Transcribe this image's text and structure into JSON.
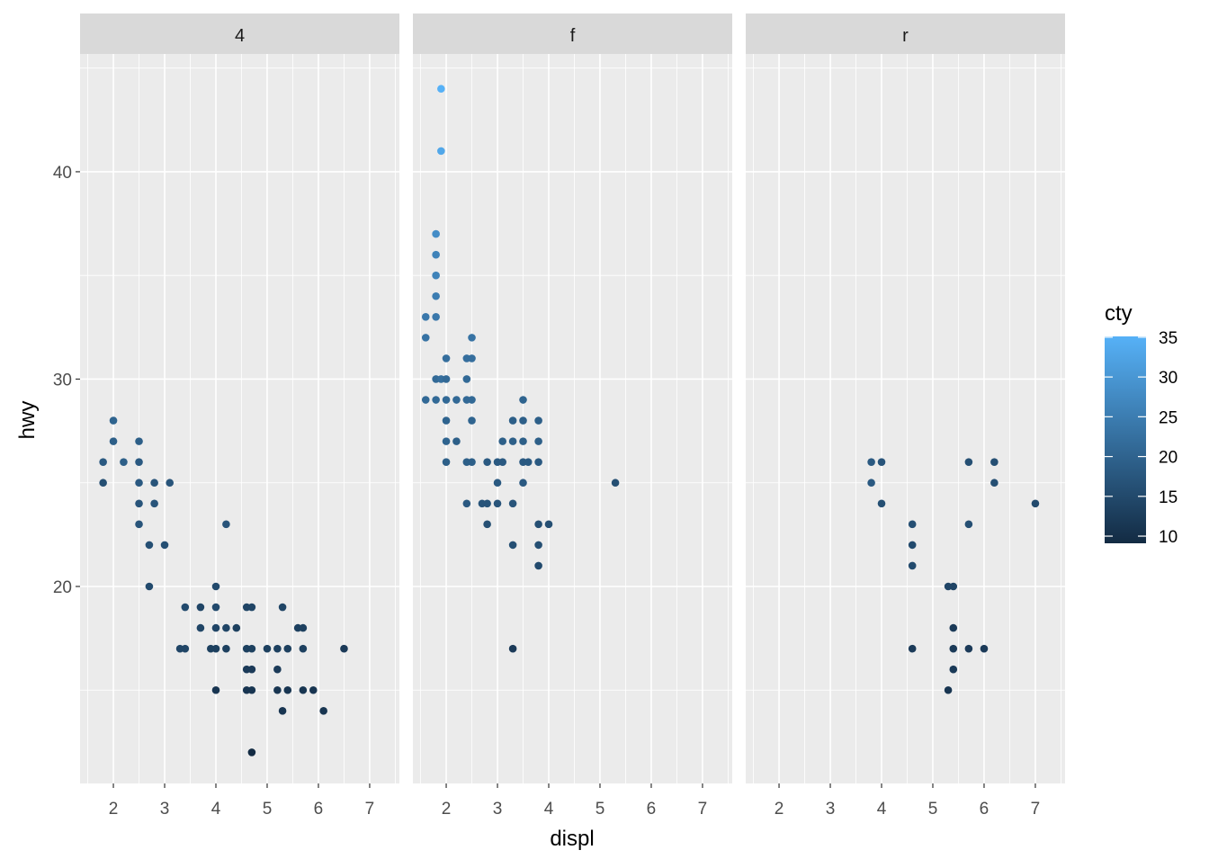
{
  "chart_data": {
    "type": "scatter",
    "facet_by": "drv",
    "xlabel": "displ",
    "ylabel": "hwy",
    "xlim": [
      1.35,
      7.58
    ],
    "ylim": [
      10.5,
      45.68
    ],
    "x_ticks": [
      "2",
      "3",
      "4",
      "5",
      "6",
      "7"
    ],
    "y_ticks": [
      "20",
      "30",
      "40"
    ],
    "grid": true,
    "legend": {
      "title": "cty",
      "placement": "right",
      "type": "colorbar",
      "ticks": [
        "10",
        "15",
        "20",
        "25",
        "30",
        "35"
      ],
      "range": [
        9,
        35
      ],
      "low_color": "#132B43",
      "high_color": "#56B1F7"
    },
    "facets": [
      {
        "label": "4",
        "points": [
          [
            1.8,
            26,
            18
          ],
          [
            1.8,
            25,
            16
          ],
          [
            2.0,
            28,
            20
          ],
          [
            2.0,
            27,
            19
          ],
          [
            2.2,
            26,
            19
          ],
          [
            2.5,
            27,
            19
          ],
          [
            2.5,
            26,
            18
          ],
          [
            2.5,
            25,
            18
          ],
          [
            2.5,
            24,
            17
          ],
          [
            2.5,
            23,
            17
          ],
          [
            2.7,
            22,
            16
          ],
          [
            2.7,
            20,
            15
          ],
          [
            2.8,
            25,
            17
          ],
          [
            2.8,
            24,
            17
          ],
          [
            3.0,
            22,
            16
          ],
          [
            3.1,
            25,
            17
          ],
          [
            3.3,
            17,
            14
          ],
          [
            3.4,
            19,
            15
          ],
          [
            3.4,
            17,
            14
          ],
          [
            3.7,
            19,
            14
          ],
          [
            3.7,
            18,
            14
          ],
          [
            3.9,
            17,
            13
          ],
          [
            4.0,
            20,
            15
          ],
          [
            4.0,
            19,
            15
          ],
          [
            4.0,
            18,
            14
          ],
          [
            4.0,
            17,
            13
          ],
          [
            4.0,
            15,
            11
          ],
          [
            4.2,
            18,
            14
          ],
          [
            4.2,
            17,
            13
          ],
          [
            4.2,
            23,
            17
          ],
          [
            4.4,
            18,
            13
          ],
          [
            4.6,
            19,
            14
          ],
          [
            4.6,
            17,
            13
          ],
          [
            4.6,
            16,
            12
          ],
          [
            4.6,
            15,
            11
          ],
          [
            4.7,
            19,
            14
          ],
          [
            4.7,
            17,
            13
          ],
          [
            4.7,
            16,
            12
          ],
          [
            4.7,
            15,
            11
          ],
          [
            4.7,
            12,
            9
          ],
          [
            5.0,
            17,
            13
          ],
          [
            5.2,
            17,
            13
          ],
          [
            5.2,
            16,
            12
          ],
          [
            5.2,
            15,
            11
          ],
          [
            5.3,
            19,
            14
          ],
          [
            5.3,
            14,
            11
          ],
          [
            5.4,
            17,
            13
          ],
          [
            5.4,
            15,
            11
          ],
          [
            5.6,
            18,
            13
          ],
          [
            5.7,
            18,
            13
          ],
          [
            5.7,
            17,
            13
          ],
          [
            5.7,
            15,
            11
          ],
          [
            5.9,
            15,
            11
          ],
          [
            6.1,
            14,
            11
          ],
          [
            6.5,
            17,
            12
          ]
        ]
      },
      {
        "label": "f",
        "points": [
          [
            1.6,
            33,
            24
          ],
          [
            1.6,
            32,
            23
          ],
          [
            1.6,
            29,
            21
          ],
          [
            1.8,
            37,
            28
          ],
          [
            1.8,
            36,
            26
          ],
          [
            1.8,
            35,
            26
          ],
          [
            1.8,
            34,
            25
          ],
          [
            1.8,
            33,
            24
          ],
          [
            1.8,
            30,
            21
          ],
          [
            1.8,
            29,
            21
          ],
          [
            1.9,
            44,
            35
          ],
          [
            1.9,
            41,
            33
          ],
          [
            1.9,
            30,
            22
          ],
          [
            2.0,
            31,
            22
          ],
          [
            2.0,
            30,
            21
          ],
          [
            2.0,
            29,
            21
          ],
          [
            2.0,
            28,
            20
          ],
          [
            2.0,
            27,
            20
          ],
          [
            2.0,
            26,
            19
          ],
          [
            2.2,
            29,
            21
          ],
          [
            2.2,
            27,
            19
          ],
          [
            2.4,
            31,
            22
          ],
          [
            2.4,
            30,
            21
          ],
          [
            2.4,
            29,
            21
          ],
          [
            2.4,
            26,
            19
          ],
          [
            2.4,
            24,
            18
          ],
          [
            2.5,
            32,
            23
          ],
          [
            2.5,
            31,
            22
          ],
          [
            2.5,
            29,
            21
          ],
          [
            2.5,
            28,
            20
          ],
          [
            2.5,
            26,
            19
          ],
          [
            2.7,
            24,
            17
          ],
          [
            2.8,
            24,
            17
          ],
          [
            2.8,
            23,
            16
          ],
          [
            2.8,
            26,
            18
          ],
          [
            3.0,
            26,
            18
          ],
          [
            3.0,
            25,
            18
          ],
          [
            3.0,
            24,
            17
          ],
          [
            3.1,
            27,
            19
          ],
          [
            3.1,
            26,
            18
          ],
          [
            3.3,
            27,
            19
          ],
          [
            3.3,
            28,
            19
          ],
          [
            3.3,
            24,
            17
          ],
          [
            3.3,
            22,
            16
          ],
          [
            3.3,
            17,
            12
          ],
          [
            3.5,
            29,
            20
          ],
          [
            3.5,
            28,
            19
          ],
          [
            3.5,
            27,
            19
          ],
          [
            3.5,
            26,
            18
          ],
          [
            3.5,
            25,
            18
          ],
          [
            3.6,
            26,
            18
          ],
          [
            3.8,
            28,
            19
          ],
          [
            3.8,
            27,
            19
          ],
          [
            3.8,
            26,
            18
          ],
          [
            3.8,
            23,
            16
          ],
          [
            3.8,
            22,
            16
          ],
          [
            3.8,
            21,
            15
          ],
          [
            4.0,
            23,
            16
          ],
          [
            5.3,
            25,
            16
          ]
        ]
      },
      {
        "label": "r",
        "points": [
          [
            3.8,
            26,
            18
          ],
          [
            3.8,
            25,
            18
          ],
          [
            4.0,
            26,
            17
          ],
          [
            4.0,
            24,
            16
          ],
          [
            4.6,
            23,
            16
          ],
          [
            4.6,
            22,
            15
          ],
          [
            4.6,
            21,
            15
          ],
          [
            4.6,
            17,
            12
          ],
          [
            5.3,
            20,
            14
          ],
          [
            5.4,
            20,
            14
          ],
          [
            5.3,
            15,
            11
          ],
          [
            5.4,
            18,
            12
          ],
          [
            5.4,
            17,
            12
          ],
          [
            5.4,
            16,
            12
          ],
          [
            5.7,
            26,
            16
          ],
          [
            5.7,
            23,
            16
          ],
          [
            5.7,
            17,
            12
          ],
          [
            6.0,
            17,
            12
          ],
          [
            6.2,
            26,
            16
          ],
          [
            6.2,
            25,
            16
          ],
          [
            7.0,
            24,
            15
          ]
        ]
      }
    ]
  }
}
